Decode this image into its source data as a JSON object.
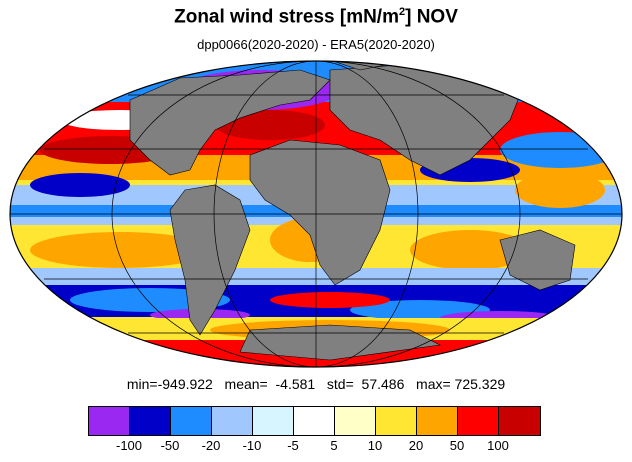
{
  "title": {
    "main": "Zonal wind stress [mN/m",
    "sup": "2",
    "tail": "] NOV"
  },
  "subtitle": "dpp0066(2020-2020) - ERA5(2020-2020)",
  "stats": {
    "min_label": "min=",
    "min": "-949.922",
    "mean_label": "mean=",
    "mean": "-4.581",
    "std_label": "std=",
    "std": "57.486",
    "max_label": "max=",
    "max": "725.329"
  },
  "colorbar": {
    "colors": [
      "#9a28f0",
      "#0000c8",
      "#1e8cff",
      "#a0c8ff",
      "#d7f5ff",
      "#ffffff",
      "#ffffc8",
      "#ffe632",
      "#ffa500",
      "#ff0000",
      "#c80000"
    ],
    "labels": [
      "-100",
      "-50",
      "-20",
      "-10",
      "-5",
      "5",
      "10",
      "20",
      "50",
      "100"
    ]
  },
  "map": {
    "projection": "mollweide",
    "land_color": "#808080",
    "gridline_color": "#000000"
  }
}
